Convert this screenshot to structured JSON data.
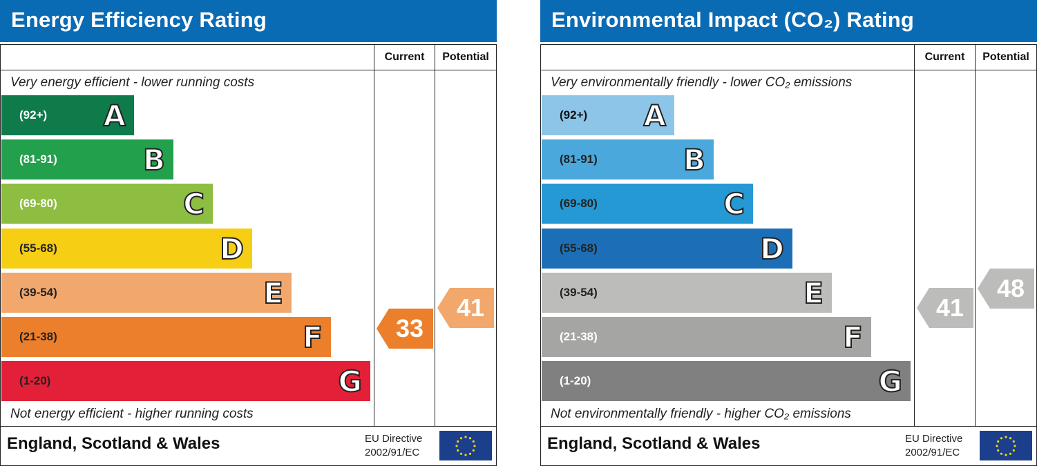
{
  "panels": [
    {
      "title": "Energy Efficiency Rating",
      "columns": [
        "Current",
        "Potential"
      ],
      "top_caption": "Very energy efficient - lower running costs",
      "bottom_caption": "Not energy efficient - higher running costs",
      "region": "England, Scotland & Wales",
      "directive_line1": "EU Directive",
      "directive_line2": "2002/91/EC"
    },
    {
      "title": "Environmental Impact (CO₂) Rating",
      "columns": [
        "Current",
        "Potential"
      ],
      "top_caption": "Very environmentally friendly - lower CO₂ emissions",
      "bottom_caption": "Not environmentally friendly - higher CO₂ emissions",
      "region": "England, Scotland & Wales",
      "directive_line1": "EU Directive",
      "directive_line2": "2002/91/EC"
    }
  ],
  "chart_data": [
    {
      "type": "bar",
      "title": "Energy Efficiency Rating",
      "categories": [
        "A",
        "B",
        "C",
        "D",
        "E",
        "F",
        "G"
      ],
      "ranges": [
        "(92+)",
        "(81-91)",
        "(69-80)",
        "(55-68)",
        "(39-54)",
        "(21-38)",
        "(1-20)"
      ],
      "colors": [
        "#0f7a4a",
        "#23a04b",
        "#8dbd41",
        "#f6cf14",
        "#f2a86c",
        "#ec7f2b",
        "#e32038"
      ],
      "range_text_colors": [
        "#ffffff",
        "#ffffff",
        "#ffffff",
        "#222222",
        "#222222",
        "#222222",
        "#222222"
      ],
      "current": 33,
      "current_band": "F",
      "current_color": "#ec7f2b",
      "potential": 41,
      "potential_band": "E",
      "potential_color": "#f2a86c"
    },
    {
      "type": "bar",
      "title": "Environmental Impact (CO₂) Rating",
      "categories": [
        "A",
        "B",
        "C",
        "D",
        "E",
        "F",
        "G"
      ],
      "ranges": [
        "(92+)",
        "(81-91)",
        "(69-80)",
        "(55-68)",
        "(39-54)",
        "(21-38)",
        "(1-20)"
      ],
      "colors": [
        "#8cc5e8",
        "#4aa8dc",
        "#2599d3",
        "#1c6fb6",
        "#bcbcbb",
        "#a5a5a4",
        "#808080"
      ],
      "range_text_colors": [
        "#111111",
        "#222222",
        "#222222",
        "#222222",
        "#222222",
        "#ffffff",
        "#ffffff"
      ],
      "current": 41,
      "current_band": "E",
      "current_color": "#bcbcbb",
      "potential": 48,
      "potential_band": "E",
      "potential_color": "#bcbcbb"
    }
  ]
}
